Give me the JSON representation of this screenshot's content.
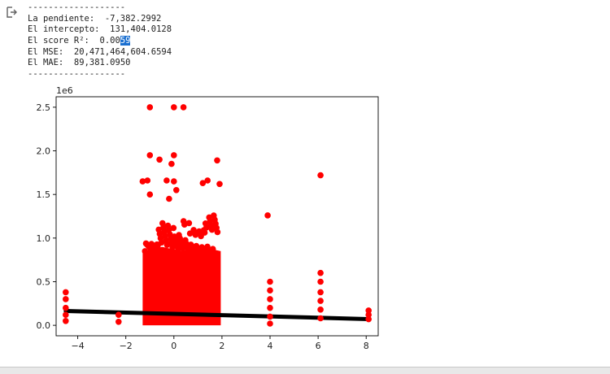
{
  "output": {
    "separator_top": "-------------------",
    "pendiente_label": "La pendiente:",
    "pendiente_value": "-7,382.2992",
    "intercepto_label": "El intercepto:",
    "intercepto_value": "131,404.0128",
    "score_label": "El score R²:",
    "score_value_plain": "0.00",
    "score_value_selected": "59",
    "mse_label": "El MSE:",
    "mse_value": "20,471,464,604.6594",
    "mae_label": "El MAE:",
    "mae_value": "89,381.0950",
    "separator_bottom": "-------------------",
    "icon": "output-arrow-icon"
  },
  "chart_data": {
    "type": "scatter",
    "offset_text": "1e6",
    "xlim": [
      -4.9,
      8.5
    ],
    "ylim": [
      -0.12,
      2.62
    ],
    "xticks": [
      -4,
      -2,
      0,
      2,
      4,
      6,
      8
    ],
    "xtick_labels": [
      "−4",
      "−2",
      "0",
      "2",
      "4",
      "6",
      "8"
    ],
    "yticks": [
      0.0,
      0.5,
      1.0,
      1.5,
      2.0,
      2.5
    ],
    "ytick_labels": [
      "0.0",
      "0.5",
      "1.0",
      "1.5",
      "2.0",
      "2.5"
    ],
    "grid": false,
    "series": [
      {
        "kind": "points",
        "color": "#ff0000",
        "points": [
          [
            -1.0,
            2.5
          ],
          [
            0.0,
            2.5
          ],
          [
            0.4,
            2.5
          ],
          [
            -1.0,
            1.95
          ],
          [
            0.0,
            1.95
          ],
          [
            -0.6,
            1.9
          ],
          [
            1.8,
            1.89
          ],
          [
            -0.1,
            1.85
          ],
          [
            -1.3,
            1.65
          ],
          [
            -1.1,
            1.66
          ],
          [
            -0.3,
            1.66
          ],
          [
            0.0,
            1.65
          ],
          [
            1.2,
            1.63
          ],
          [
            1.4,
            1.66
          ],
          [
            1.9,
            1.62
          ],
          [
            -1.0,
            1.5
          ],
          [
            -0.2,
            1.45
          ],
          [
            0.1,
            1.55
          ],
          [
            6.1,
            1.72
          ],
          [
            3.9,
            1.26
          ],
          [
            -4.5,
            0.38
          ],
          [
            -4.5,
            0.3
          ],
          [
            -4.5,
            0.2
          ],
          [
            -4.5,
            0.12
          ],
          [
            -4.5,
            0.05
          ],
          [
            -2.3,
            0.12
          ],
          [
            -2.3,
            0.04
          ],
          [
            4.0,
            0.5
          ],
          [
            4.0,
            0.4
          ],
          [
            4.0,
            0.3
          ],
          [
            4.0,
            0.2
          ],
          [
            4.0,
            0.1
          ],
          [
            4.0,
            0.02
          ],
          [
            6.1,
            0.6
          ],
          [
            6.1,
            0.5
          ],
          [
            6.1,
            0.38
          ],
          [
            6.1,
            0.28
          ],
          [
            6.1,
            0.18
          ],
          [
            6.1,
            0.08
          ],
          [
            8.1,
            0.17
          ],
          [
            8.1,
            0.12
          ],
          [
            8.1,
            0.07
          ]
        ],
        "mass_region": {
          "x": [
            -1.3,
            1.95
          ],
          "y": [
            0.0,
            0.85
          ],
          "top_profile_y": [
            0.95,
            1.3,
            1.2,
            1.1,
            1.28
          ]
        }
      },
      {
        "kind": "line",
        "color": "#000000",
        "slope": -0.0073822992,
        "intercept": 0.1314040128
      }
    ]
  }
}
